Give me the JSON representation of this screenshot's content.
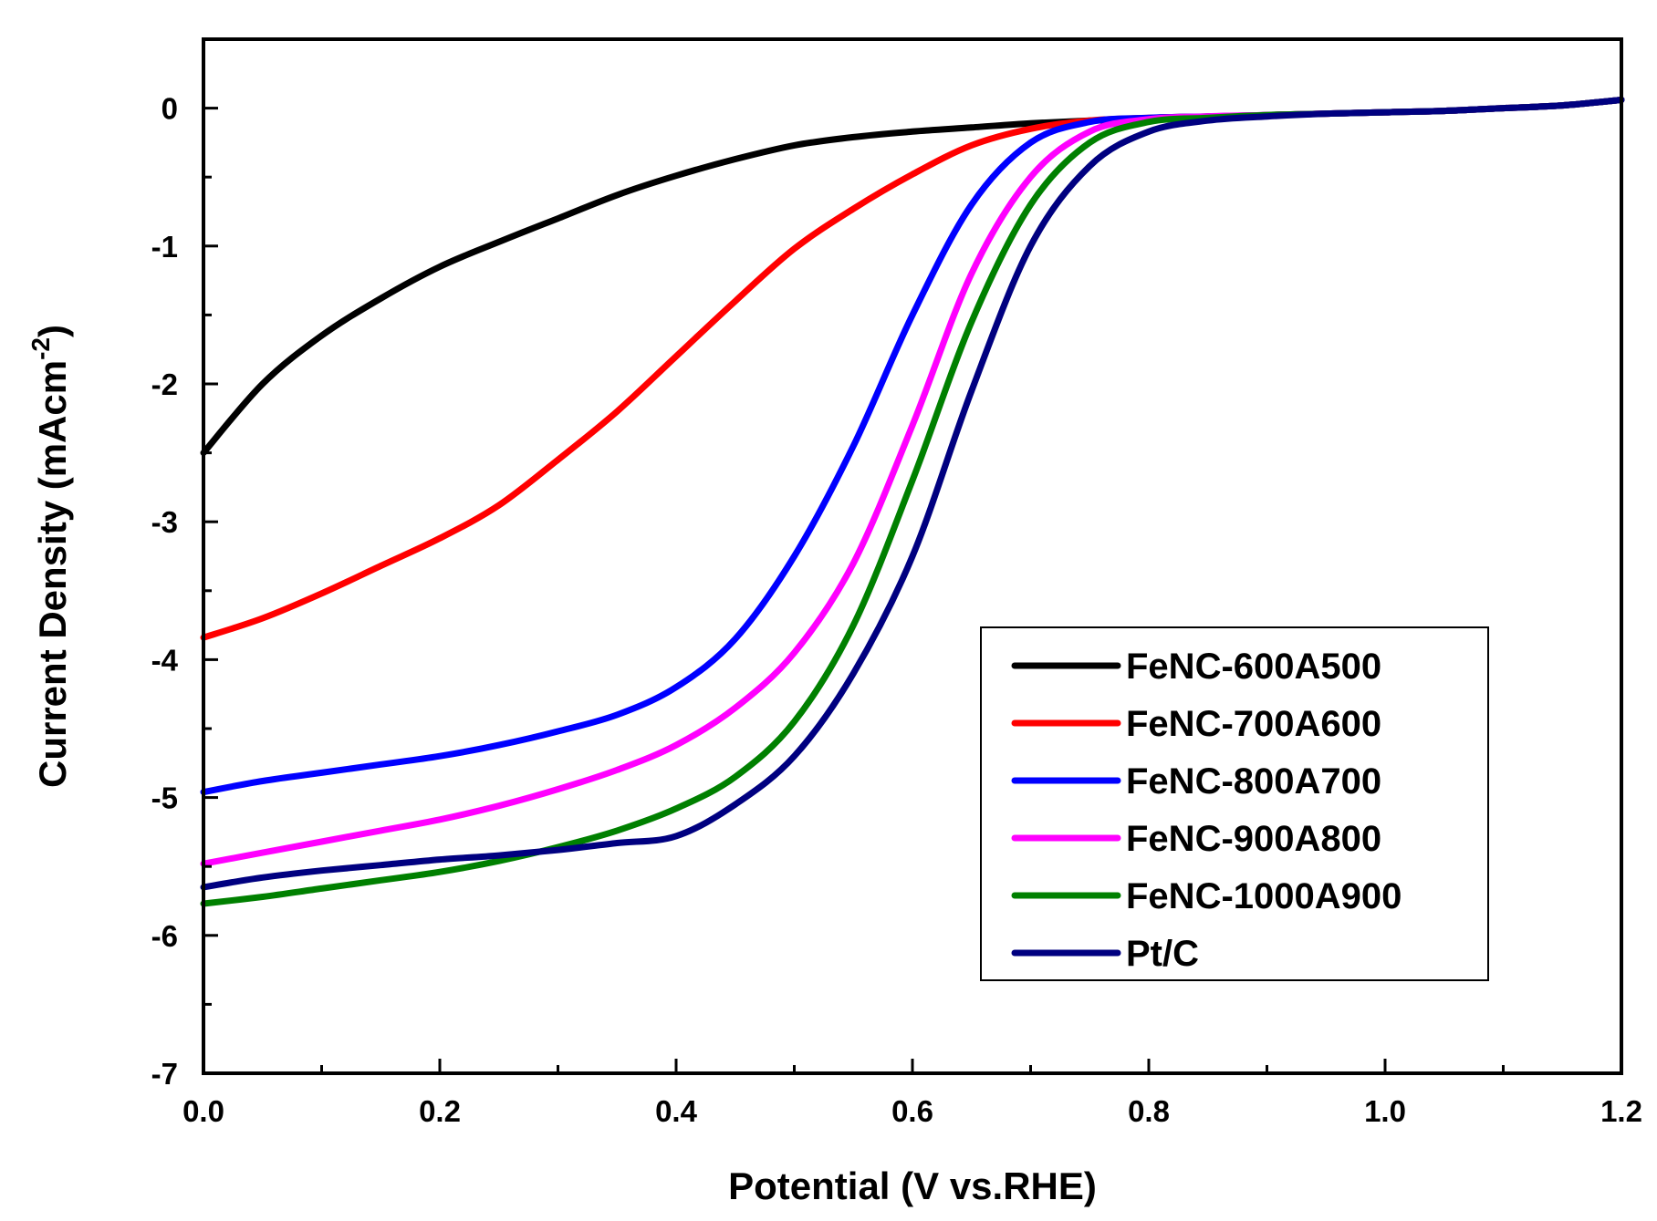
{
  "chart_data": {
    "type": "line",
    "title": "",
    "xlabel": "Potential (V vs.RHE)",
    "ylabel_main": "Current Density (mAcm",
    "ylabel_sup": "-2",
    "ylabel_close": ")",
    "xlim": [
      0.0,
      1.2
    ],
    "ylim": [
      -7,
      0.5
    ],
    "xticks": [
      0.0,
      0.2,
      0.4,
      0.6,
      0.8,
      1.0,
      1.2
    ],
    "xtick_labels": [
      "0.0",
      "0.2",
      "0.4",
      "0.6",
      "0.8",
      "1.0",
      "1.2"
    ],
    "yticks": [
      0,
      -1,
      -2,
      -3,
      -4,
      -5,
      -6,
      -7
    ],
    "ytick_labels": [
      "0",
      "-1",
      "-2",
      "-3",
      "-4",
      "-5",
      "-6",
      "-7"
    ],
    "grid": false,
    "legend_position": "bottom-right",
    "x": [
      0.0,
      0.05,
      0.1,
      0.15,
      0.2,
      0.25,
      0.3,
      0.35,
      0.4,
      0.45,
      0.5,
      0.55,
      0.6,
      0.65,
      0.7,
      0.75,
      0.8,
      0.85,
      0.9,
      0.95,
      1.0,
      1.05,
      1.1,
      1.15,
      1.2
    ],
    "series": [
      {
        "name": "FeNC-600A500",
        "color": "#000000",
        "values": [
          -2.5,
          -2.0,
          -1.65,
          -1.38,
          -1.15,
          -0.97,
          -0.8,
          -0.63,
          -0.49,
          -0.37,
          -0.27,
          -0.21,
          -0.17,
          -0.14,
          -0.11,
          -0.09,
          -0.08,
          -0.07,
          -0.05,
          -0.04,
          -0.03,
          -0.02,
          0.0,
          0.02,
          0.06
        ]
      },
      {
        "name": "FeNC-700A600",
        "color": "#ff0000",
        "values": [
          -3.84,
          -3.7,
          -3.52,
          -3.32,
          -3.12,
          -2.88,
          -2.55,
          -2.2,
          -1.8,
          -1.4,
          -1.02,
          -0.73,
          -0.48,
          -0.27,
          -0.15,
          -0.09,
          -0.07,
          -0.06,
          -0.05,
          -0.04,
          -0.03,
          -0.02,
          0.0,
          0.02,
          0.06
        ]
      },
      {
        "name": "FeNC-800A700",
        "color": "#0000ff",
        "values": [
          -4.96,
          -4.88,
          -4.82,
          -4.76,
          -4.7,
          -4.62,
          -4.52,
          -4.4,
          -4.2,
          -3.85,
          -3.25,
          -2.45,
          -1.5,
          -0.7,
          -0.25,
          -0.1,
          -0.07,
          -0.06,
          -0.05,
          -0.04,
          -0.03,
          -0.02,
          0.0,
          0.02,
          0.06
        ]
      },
      {
        "name": "FeNC-900A800",
        "color": "#ff00ff",
        "values": [
          -5.48,
          -5.4,
          -5.32,
          -5.24,
          -5.16,
          -5.06,
          -4.94,
          -4.8,
          -4.62,
          -4.35,
          -3.95,
          -3.3,
          -2.3,
          -1.2,
          -0.5,
          -0.17,
          -0.08,
          -0.06,
          -0.05,
          -0.04,
          -0.03,
          -0.02,
          0.0,
          0.02,
          0.06
        ]
      },
      {
        "name": "FeNC-1000A900",
        "color": "#008000",
        "values": [
          -5.77,
          -5.72,
          -5.66,
          -5.6,
          -5.54,
          -5.46,
          -5.36,
          -5.24,
          -5.08,
          -4.85,
          -4.45,
          -3.75,
          -2.7,
          -1.55,
          -0.7,
          -0.25,
          -0.1,
          -0.07,
          -0.05,
          -0.04,
          -0.03,
          -0.02,
          0.0,
          0.02,
          0.06
        ]
      },
      {
        "name": "Pt/C",
        "color": "#000080",
        "values": [
          -5.65,
          -5.58,
          -5.53,
          -5.49,
          -5.45,
          -5.42,
          -5.38,
          -5.33,
          -5.28,
          -5.05,
          -4.7,
          -4.1,
          -3.25,
          -2.05,
          -1.0,
          -0.42,
          -0.17,
          -0.09,
          -0.06,
          -0.04,
          -0.03,
          -0.02,
          0.0,
          0.02,
          0.06
        ]
      }
    ]
  }
}
